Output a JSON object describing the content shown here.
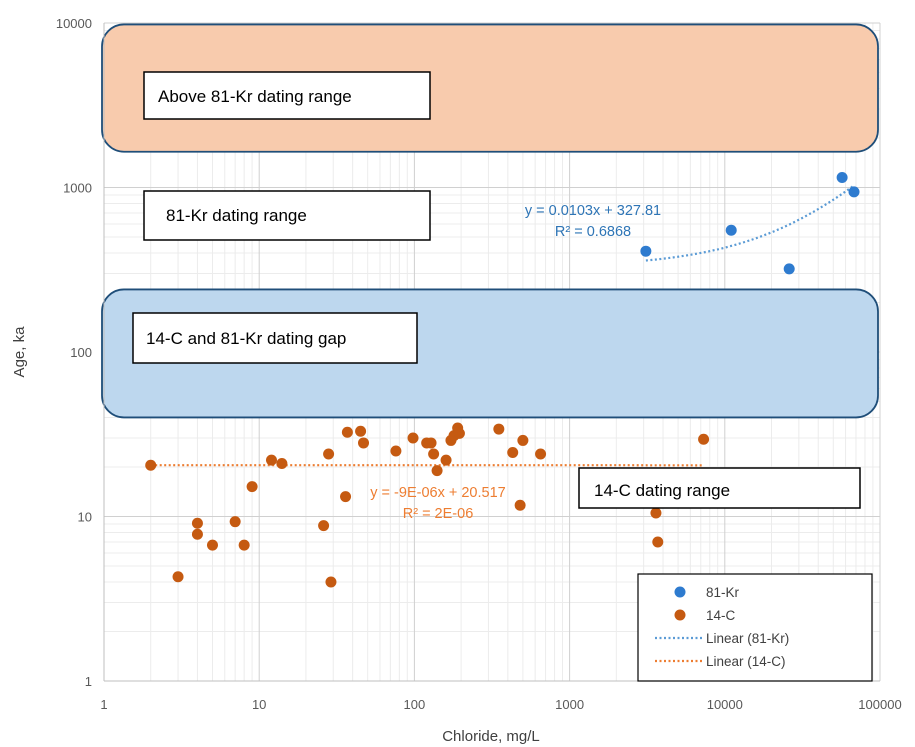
{
  "chart_data": {
    "type": "scatter",
    "x_scale": "log",
    "y_scale": "log",
    "xlim": [
      1,
      100000
    ],
    "ylim": [
      1,
      10000
    ],
    "xlabel": "Chloride, mg/L",
    "ylabel": "Age, ka",
    "x_ticks": [
      "1",
      "10",
      "100",
      "1000",
      "10000",
      "100000"
    ],
    "y_ticks": [
      "1",
      "10",
      "100",
      "1000",
      "10000"
    ],
    "grid": "major and minor (log)",
    "legend_position": "bottom-right",
    "colors": {
      "kr": "#2e7bcf",
      "c14": "#c55a11",
      "kr_eq": "#2e75b6",
      "c14_eq": "#ed7d31",
      "kr_trend": "#5b9bd5",
      "c14_trend": "#ed7d31",
      "band_above": "#f8cbad",
      "band_gap": "#bdd7ee",
      "band_border": "#1f4e79"
    },
    "bands": [
      {
        "id": "above",
        "y_from": 1650,
        "y_to": 9800,
        "label": "Above 81-Kr dating range"
      },
      {
        "id": "gap",
        "y_from": 40,
        "y_to": 240,
        "label": "14-C and 81-Kr dating gap"
      }
    ],
    "range_labels": {
      "kr": "81-Kr dating range",
      "c14": "14-C dating range"
    },
    "series": [
      {
        "name": "81-Kr",
        "x": [
          3100,
          11000,
          26000,
          57000,
          68000
        ],
        "y": [
          410,
          550,
          320,
          1150,
          940
        ]
      },
      {
        "name": "14-C",
        "x": [
          2,
          3,
          4,
          4,
          5,
          7,
          8,
          9,
          12,
          14,
          26,
          28,
          29,
          36,
          37,
          45,
          47,
          76,
          98,
          120,
          128,
          133,
          140,
          160,
          172,
          180,
          190,
          195,
          350,
          430,
          480,
          500,
          650,
          3600,
          3700,
          7300
        ],
        "y": [
          20.5,
          4.3,
          9.1,
          7.8,
          6.7,
          9.3,
          6.7,
          15.2,
          22,
          21,
          8.8,
          24,
          4,
          13.2,
          32.5,
          33,
          28,
          25,
          30,
          28,
          28,
          24,
          19,
          22,
          29,
          31,
          34.5,
          32,
          34,
          24.5,
          11.7,
          29,
          24,
          10.5,
          7,
          29.5
        ]
      }
    ],
    "trendlines": [
      {
        "name": "Linear (81-Kr)",
        "x": [
          3100,
          68000
        ],
        "slope": 0.0103,
        "intercept": 327.81,
        "equation": "y = 0.0103x + 327.81",
        "r2": "R² = 0.6868"
      },
      {
        "name": "Linear (14-C)",
        "x": [
          2,
          7300
        ],
        "slope": -9e-06,
        "intercept": 20.517,
        "equation": "y = -9E-06x + 20.517",
        "r2": "R² = 2E-06"
      }
    ],
    "legend": [
      {
        "label": "81-Kr",
        "kind": "marker",
        "color": "#2e7bcf"
      },
      {
        "label": "14-C",
        "kind": "marker",
        "color": "#c55a11"
      },
      {
        "label": "Linear (81-Kr)",
        "kind": "dotted",
        "color": "#5b9bd5"
      },
      {
        "label": "Linear (14-C)",
        "kind": "dotted",
        "color": "#ed7d31"
      }
    ]
  }
}
